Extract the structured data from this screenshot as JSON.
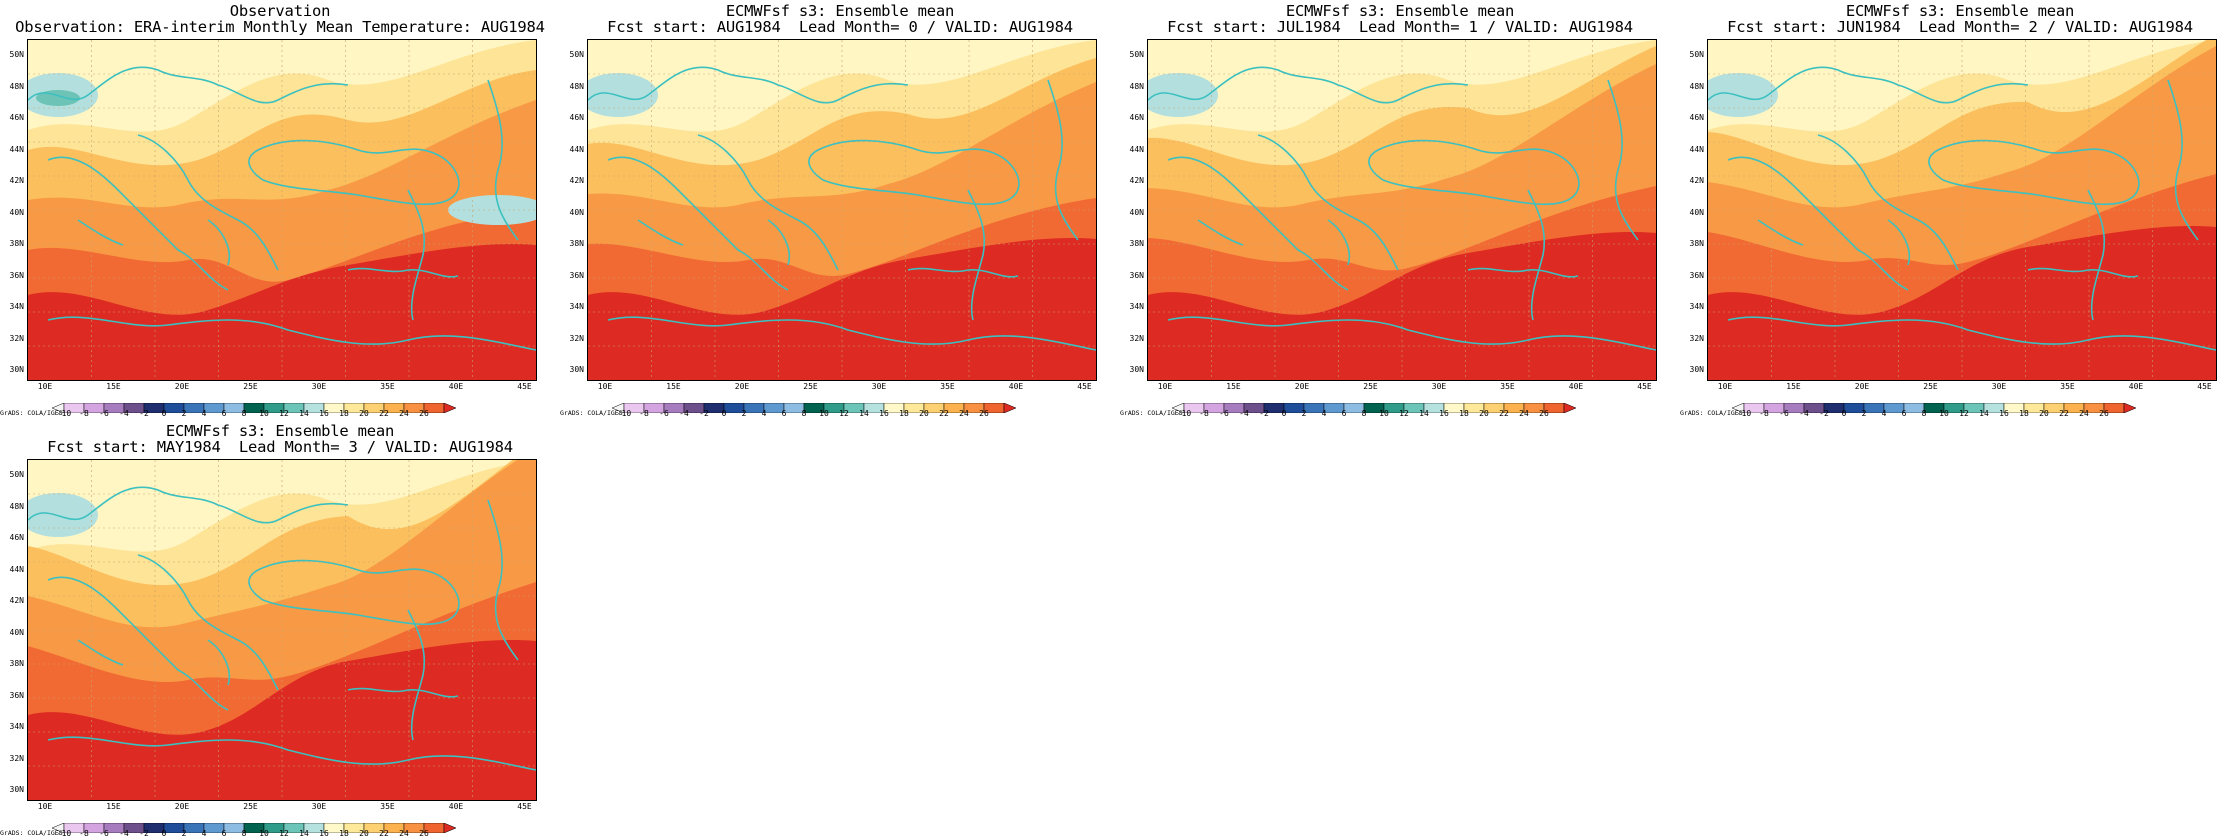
{
  "panels": [
    {
      "title1": "Observation",
      "title2": "Observation: ERA-interim Monthly Mean Temperature: AUG1984",
      "variant": 0
    },
    {
      "title1": "ECMWFsf s3: Ensemble mean",
      "title2": "Fcst start: AUG1984  Lead Month= 0 / VALID: AUG1984",
      "variant": 1
    },
    {
      "title1": "ECMWFsf s3: Ensemble mean",
      "title2": "Fcst start: JUL1984  Lead Month= 1 / VALID: AUG1984",
      "variant": 2
    },
    {
      "title1": "ECMWFsf s3: Ensemble mean",
      "title2": "Fcst start: JUN1984  Lead Month= 2 / VALID: AUG1984",
      "variant": 3
    },
    {
      "title1": "ECMWFsf s3: Ensemble mean",
      "title2": "Fcst start: MAY1984  Lead Month= 3 / VALID: AUG1984",
      "variant": 4
    }
  ],
  "lat_labels": [
    "50N",
    "48N",
    "46N",
    "44N",
    "42N",
    "40N",
    "38N",
    "36N",
    "34N",
    "32N",
    "30N"
  ],
  "lon_labels": [
    "10E",
    "15E",
    "20E",
    "25E",
    "30E",
    "35E",
    "40E",
    "45E"
  ],
  "colorbar": {
    "labels": [
      "-10",
      "-8",
      "-6",
      "-4",
      "-2",
      "0",
      "2",
      "4",
      "6",
      "8",
      "10",
      "12",
      "14",
      "16",
      "18",
      "20",
      "22",
      "24",
      "26"
    ],
    "colors": [
      "#f4f4f4",
      "#e9c7ef",
      "#d4a4e0",
      "#a77cbf",
      "#6d4f8b",
      "#1e2e6e",
      "#1f4d9a",
      "#3a74b8",
      "#5e9ad0",
      "#8dbde3",
      "#00624f",
      "#2f9c8a",
      "#6dc4b8",
      "#b5e2df",
      "#fff8c8",
      "#fee89a",
      "#fdd071",
      "#fcb24f",
      "#f89141",
      "#f0652f",
      "#dd2a22"
    ],
    "credit": "GrADS: COLA/IGES"
  },
  "map_colors": {
    "cool_1": "#b3e0df",
    "cool_2": "#6cc3b6",
    "cool_3": "#2f9a86",
    "yellow_pale": "#fff6c4",
    "yellow": "#fee496",
    "gold": "#fcbf5d",
    "orange": "#f89a45",
    "orange_red": "#f26a33",
    "red": "#dd2a22",
    "coastline": "#3cc0c0"
  }
}
